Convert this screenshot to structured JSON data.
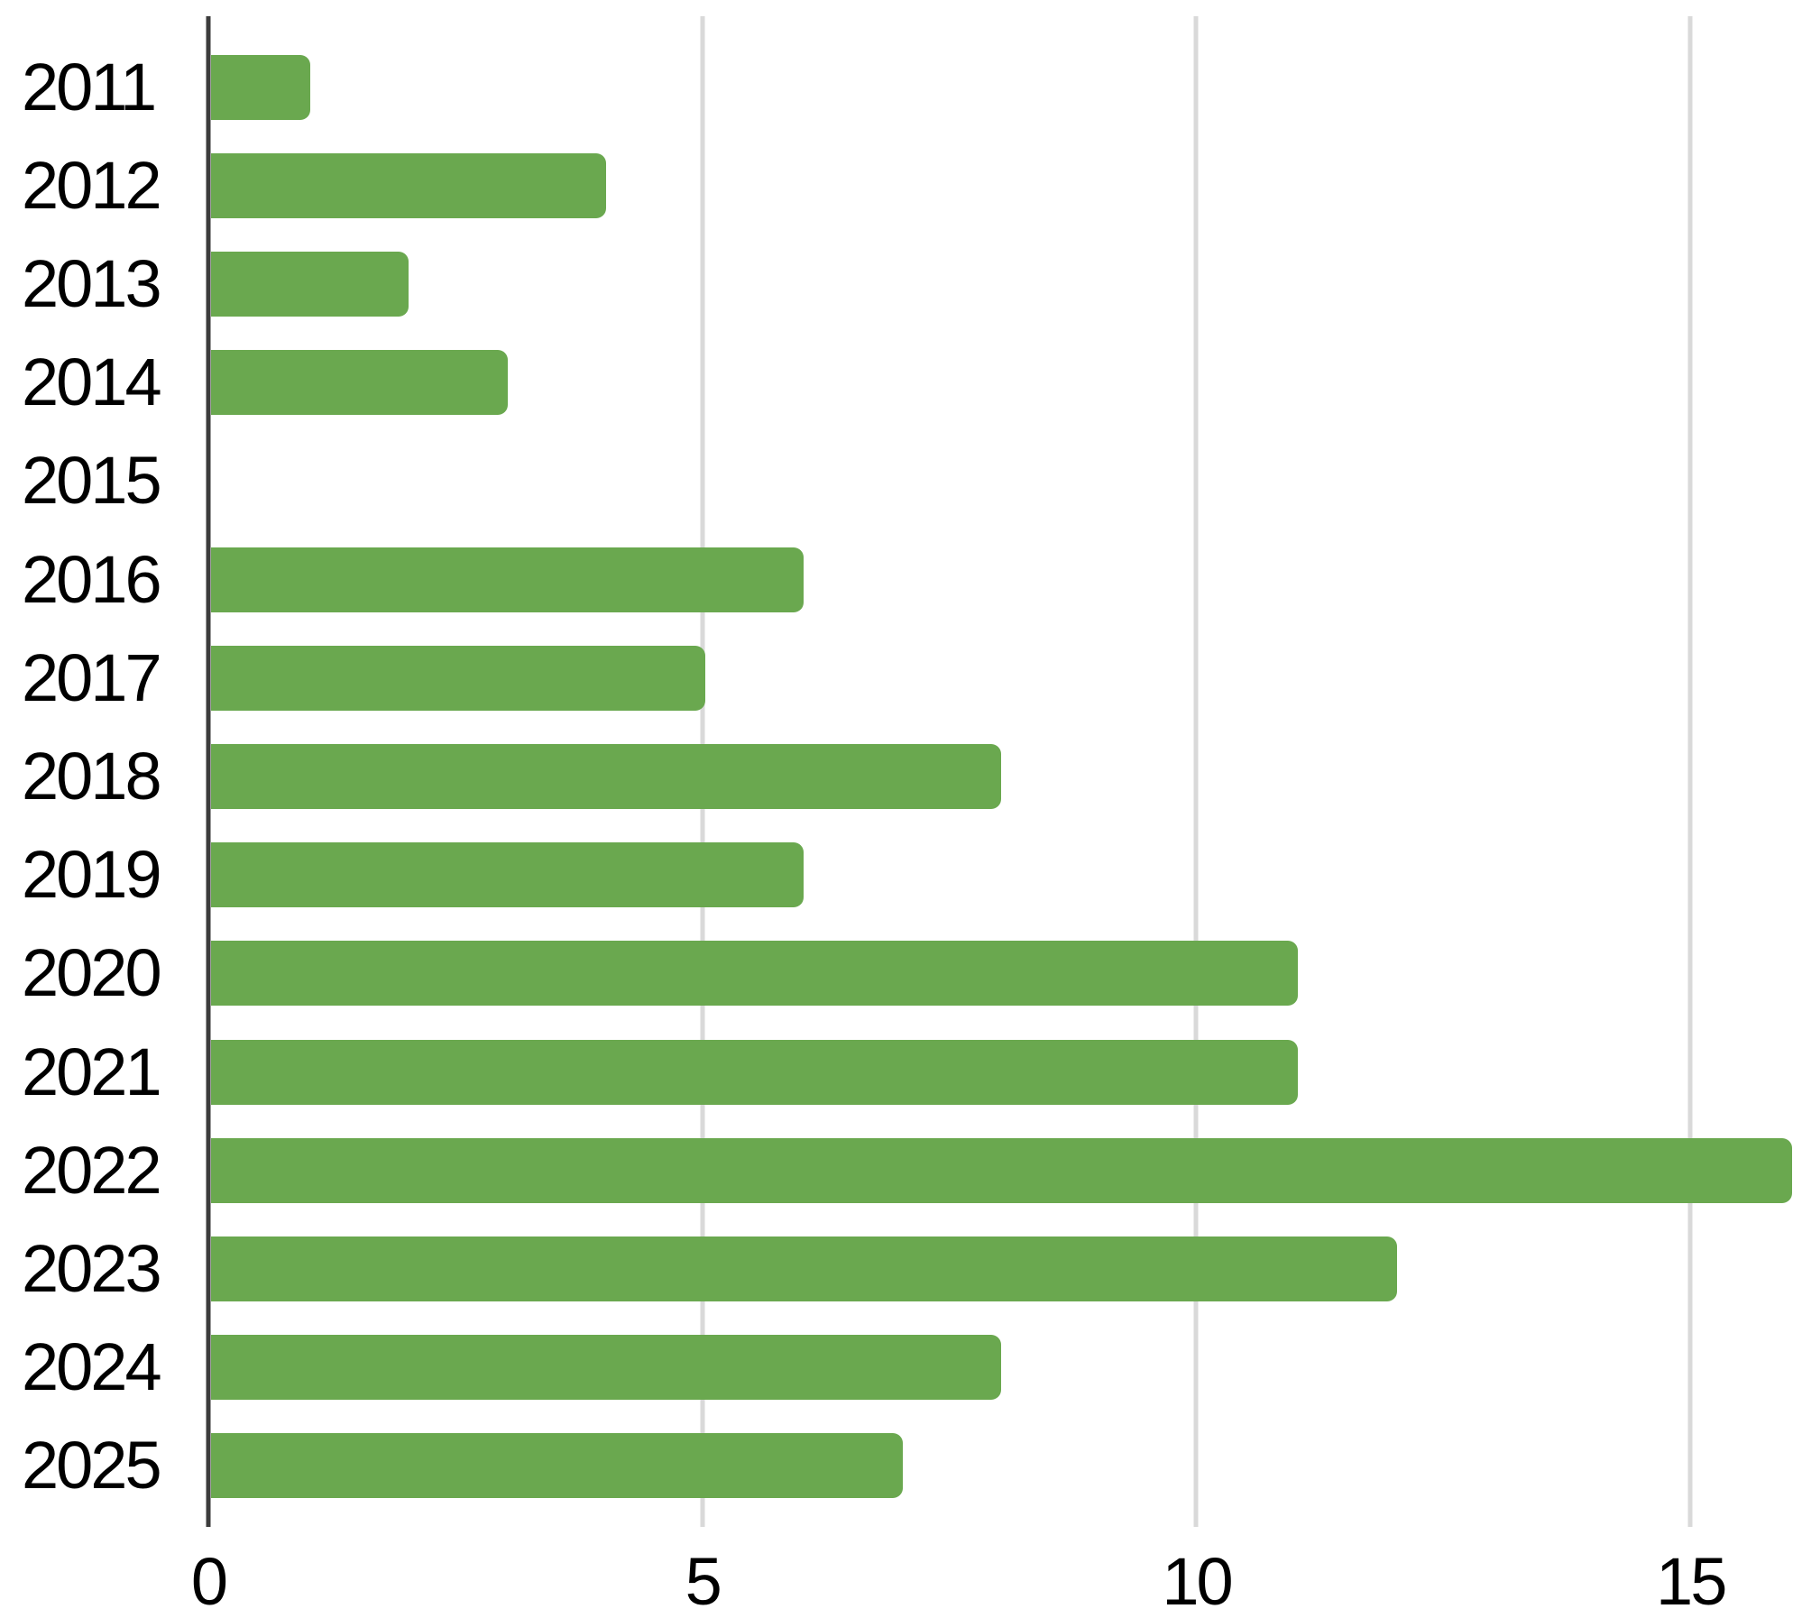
{
  "chart_data": {
    "type": "bar",
    "orientation": "horizontal",
    "title": "",
    "xlabel": "",
    "ylabel": "",
    "categories": [
      "2011",
      "2012",
      "2013",
      "2014",
      "2015",
      "2016",
      "2017",
      "2018",
      "2019",
      "2020",
      "2021",
      "2022",
      "2023",
      "2024",
      "2025"
    ],
    "values": [
      1,
      4,
      2,
      3,
      0,
      6,
      5,
      8,
      6,
      11,
      11,
      16,
      12,
      8,
      7
    ],
    "xticks": [
      0,
      5,
      10,
      15
    ],
    "xlim": [
      0,
      16.13
    ],
    "grid": true,
    "legend": "none",
    "bar_color": "#6aa84f",
    "axis_line_color": "#3c3c3c",
    "gridline_color": "#d9d9d9",
    "text_color": "#000000",
    "background_color": "#ffffff"
  }
}
